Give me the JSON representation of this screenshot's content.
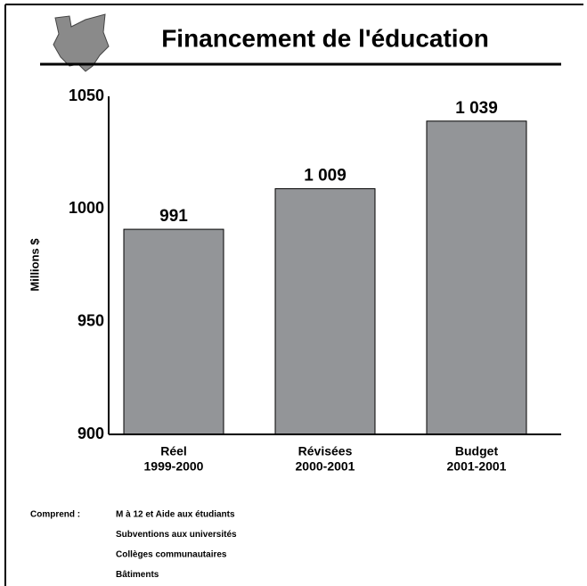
{
  "chart_data": {
    "type": "bar",
    "title": "Financement de l'éducation",
    "y_label": "Millions $",
    "categories": [
      [
        "Réel",
        "1999-2000"
      ],
      [
        "Révisées",
        "2000-2001"
      ],
      [
        "Budget",
        "2001-2001"
      ]
    ],
    "values": [
      991,
      1009,
      1039
    ],
    "value_labels": [
      "991",
      "1 009",
      "1 039"
    ],
    "color": "#939598",
    "ylim": [
      900,
      1050
    ],
    "yticks": [
      900,
      950,
      1000,
      1050
    ],
    "grid": false,
    "footnote": {
      "label": "Comprend :",
      "items": [
        "M à 12 et Aide aux étudiants",
        "Subventions aux universités",
        "Collèges communautaires",
        "Bâtiments"
      ]
    }
  }
}
